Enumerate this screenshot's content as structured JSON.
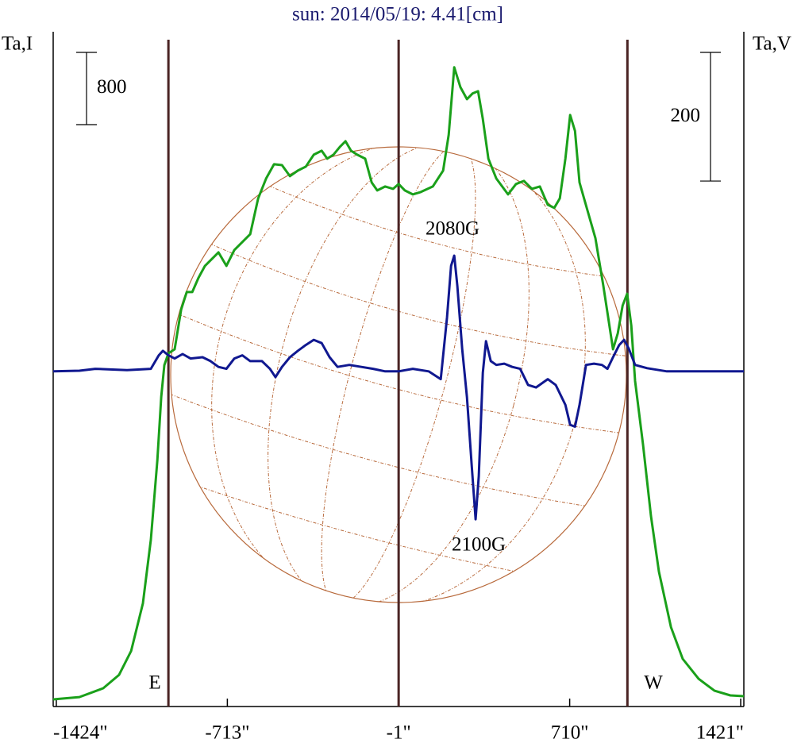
{
  "chart_data": {
    "type": "line",
    "title": "sun: 2014/05/19: 4.41[cm]",
    "y_label": "Ta,I",
    "y2_label": "Ta,V",
    "xlim": [
      -1437,
      1434
    ],
    "xticks": [
      {
        "value": -1424,
        "label": "-1424\""
      },
      {
        "value": -713,
        "label": "-713\""
      },
      {
        "value": -1,
        "label": "-1\""
      },
      {
        "value": 710,
        "label": "710\""
      },
      {
        "value": 1421,
        "label": "1421\""
      }
    ],
    "ylim": [
      -70,
      7400
    ],
    "y2lim": [
      -521,
      528
    ],
    "limbs": [
      -958,
      -1,
      950
    ],
    "limb_color": "#4a2424",
    "scale_bars": [
      {
        "value": 800,
        "axis": "y"
      },
      {
        "value": 200,
        "axis": "y2"
      }
    ],
    "annotations": [
      "2080G",
      "2100G",
      "E",
      "W"
    ],
    "series": [
      {
        "color": "#1aa01a",
        "axis": "y",
        "x": [
          -1437,
          -1328,
          -1229,
          -1163,
          -1113,
          -1064,
          -1031,
          -1004,
          -988,
          -975,
          -958,
          -932,
          -905,
          -882,
          -859,
          -833,
          -806,
          -773,
          -750,
          -717,
          -684,
          -651,
          -618,
          -585,
          -552,
          -519,
          -486,
          -453,
          -420,
          -387,
          -354,
          -321,
          -298,
          -272,
          -245,
          -222,
          -199,
          -173,
          -140,
          -113,
          -90,
          -57,
          -24,
          -1,
          25,
          58,
          91,
          141,
          184,
          207,
          230,
          256,
          283,
          306,
          329,
          349,
          372,
          405,
          454,
          487,
          520,
          553,
          586,
          619,
          646,
          669,
          692,
          712,
          732,
          751,
          784,
          817,
          850,
          870,
          890,
          910,
          930,
          949,
          966,
          982,
          1015,
          1048,
          1081,
          1131,
          1180,
          1246,
          1312,
          1378,
          1434
        ],
        "values": [
          9,
          35,
          132,
          281,
          545,
          1072,
          1775,
          2654,
          3357,
          3709,
          3841,
          3885,
          4325,
          4518,
          4518,
          4676,
          4808,
          4896,
          4958,
          4808,
          4984,
          5072,
          5160,
          5555,
          5775,
          5933,
          5924,
          5801,
          5863,
          5907,
          6039,
          6083,
          5995,
          6039,
          6127,
          6188,
          6083,
          6039,
          5995,
          5731,
          5643,
          5687,
          5661,
          5714,
          5643,
          5599,
          5626,
          5687,
          5863,
          6258,
          7006,
          6786,
          6654,
          6716,
          6742,
          6434,
          5995,
          5775,
          5599,
          5714,
          5749,
          5661,
          5687,
          5485,
          5450,
          5555,
          5995,
          6478,
          6302,
          5731,
          5423,
          5116,
          4588,
          4237,
          3885,
          4061,
          4369,
          4500,
          4149,
          3534,
          2830,
          2039,
          1424,
          809,
          457,
          237,
          105,
          53,
          44
        ]
      },
      {
        "color": "#101890",
        "axis": "y2",
        "x": [
          -1437,
          -1328,
          -1262,
          -1130,
          -1031,
          -998,
          -981,
          -958,
          -932,
          -899,
          -866,
          -816,
          -783,
          -750,
          -717,
          -684,
          -651,
          -618,
          -569,
          -536,
          -513,
          -486,
          -453,
          -420,
          -387,
          -354,
          -321,
          -288,
          -255,
          -206,
          -156,
          -107,
          -57,
          -1,
          58,
          124,
          174,
          200,
          217,
          230,
          243,
          263,
          283,
          303,
          319,
          332,
          349,
          362,
          382,
          405,
          438,
          471,
          504,
          537,
          570,
          619,
          652,
          692,
          712,
          732,
          751,
          778,
          811,
          844,
          867,
          890,
          916,
          936,
          956,
          982,
          1032,
          1114,
          1180,
          1246,
          1312,
          1434
        ],
        "values": [
          0,
          1,
          4,
          2,
          4,
          25,
          32,
          25,
          20,
          27,
          20,
          22,
          16,
          7,
          4,
          20,
          25,
          16,
          16,
          4,
          -9,
          7,
          22,
          32,
          41,
          49,
          44,
          22,
          7,
          10,
          7,
          4,
          0,
          0,
          4,
          0,
          -12,
          84,
          164,
          180,
          133,
          35,
          -40,
          -148,
          -230,
          -163,
          -2,
          47,
          16,
          10,
          12,
          7,
          4,
          -21,
          -25,
          -12,
          -21,
          -52,
          -83,
          -86,
          -52,
          10,
          12,
          10,
          4,
          22,
          41,
          49,
          35,
          10,
          5,
          0,
          0,
          0,
          0,
          0
        ]
      }
    ]
  }
}
